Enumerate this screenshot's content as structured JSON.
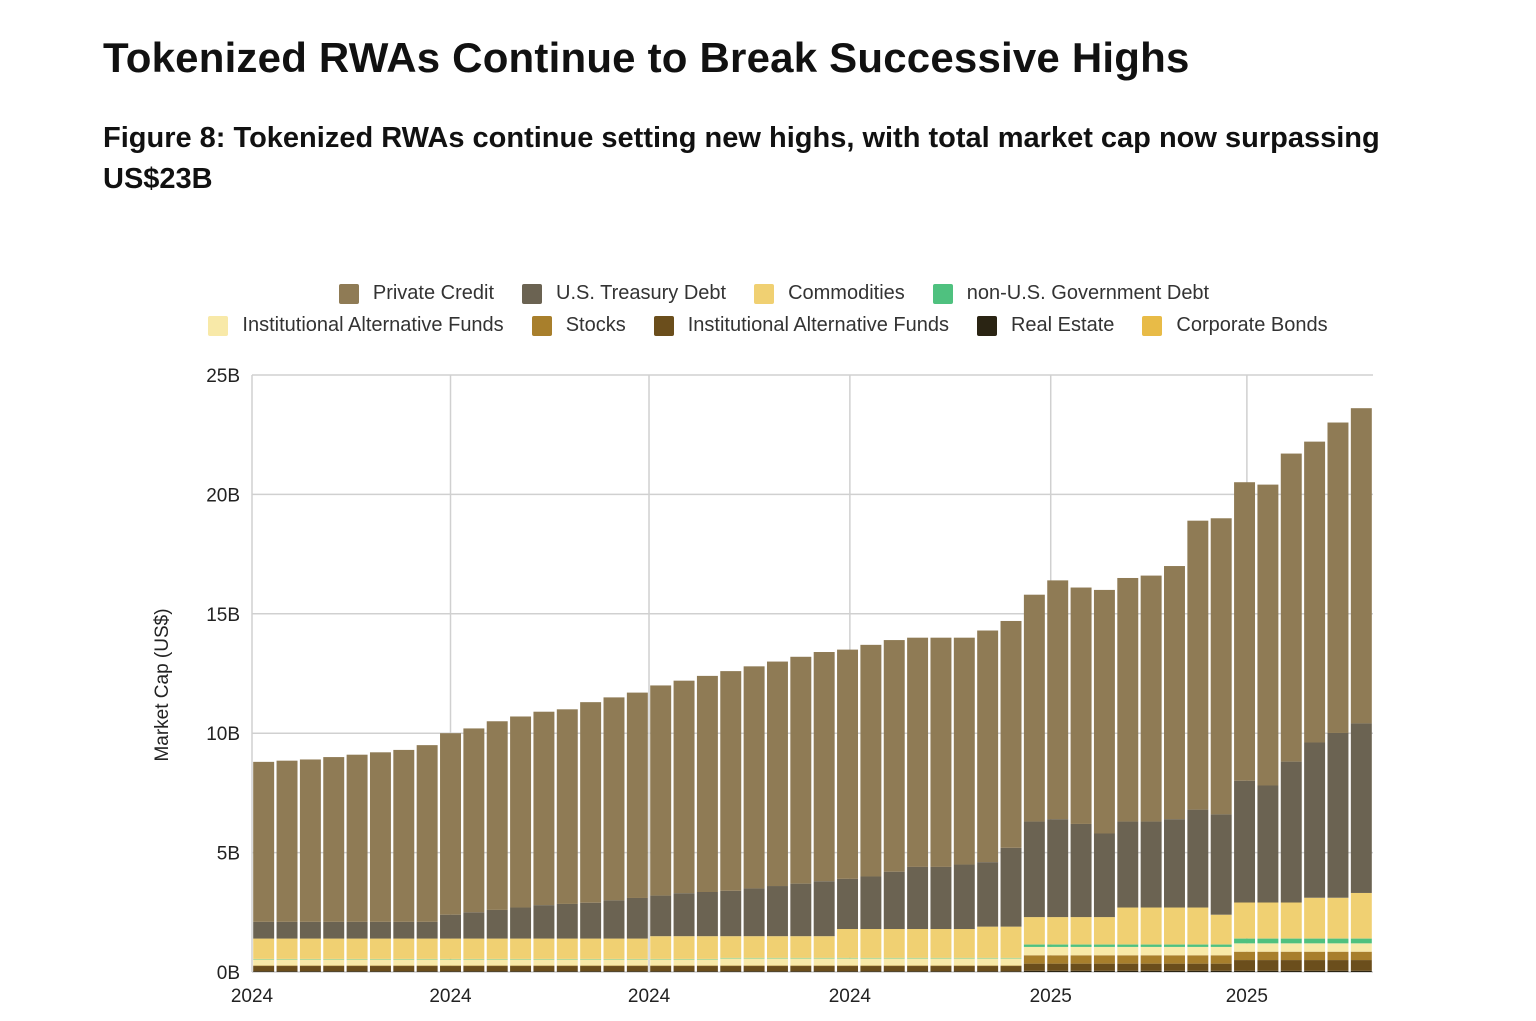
{
  "page": {
    "title": "Tokenized RWAs Continue to Break Successive Highs",
    "subtitle": "Figure 8: Tokenized RWAs continue setting new highs, with total market cap now surpassing US$23B"
  },
  "chart_data": {
    "type": "bar",
    "stacked": true,
    "ylabel": "Market Cap (US$)",
    "xlabel": "",
    "ylim": [
      0,
      25
    ],
    "y_unit": "B",
    "y_ticks": [
      "0B",
      "5B",
      "10B",
      "15B",
      "20B",
      "25B"
    ],
    "y_tick_values": [
      0,
      5,
      10,
      15,
      20,
      25
    ],
    "x_ticks": [
      {
        "label": "2024",
        "at": 0
      },
      {
        "label": "2024",
        "at": 8.5
      },
      {
        "label": "2024",
        "at": 17
      },
      {
        "label": "2024",
        "at": 25.6
      },
      {
        "label": "2025",
        "at": 34.2
      },
      {
        "label": "2025",
        "at": 42.6
      }
    ],
    "grid": true,
    "legend_placement": "top",
    "stack_order": [
      7,
      6,
      5,
      4,
      3,
      8,
      2,
      1,
      0
    ],
    "series": [
      {
        "name": "Private Credit",
        "color": "#8f7b55",
        "values": [
          6.7,
          6.75,
          6.8,
          6.9,
          7.0,
          7.1,
          7.2,
          7.4,
          7.6,
          7.7,
          7.9,
          8.0,
          8.1,
          8.15,
          8.4,
          8.5,
          8.6,
          8.8,
          8.9,
          9.05,
          9.2,
          9.3,
          9.4,
          9.5,
          9.6,
          9.6,
          9.7,
          9.7,
          9.6,
          9.6,
          9.5,
          9.7,
          9.5,
          9.5,
          10.0,
          9.9,
          10.2,
          10.2,
          10.3,
          10.6,
          12.1,
          12.4,
          12.5,
          12.6,
          12.9,
          12.6,
          13.0,
          13.2
        ]
      },
      {
        "name": "U.S. Treasury Debt",
        "color": "#6b6352",
        "values": [
          0.7,
          0.7,
          0.7,
          0.7,
          0.7,
          0.7,
          0.7,
          0.7,
          1.0,
          1.1,
          1.2,
          1.3,
          1.4,
          1.45,
          1.5,
          1.6,
          1.7,
          1.7,
          1.8,
          1.85,
          1.9,
          2.0,
          2.1,
          2.2,
          2.3,
          2.1,
          2.2,
          2.4,
          2.6,
          2.6,
          2.7,
          2.7,
          3.3,
          4.0,
          4.1,
          3.9,
          3.5,
          3.6,
          3.6,
          3.7,
          4.1,
          4.2,
          5.1,
          4.9,
          5.9,
          6.5,
          6.9,
          7.1
        ]
      },
      {
        "name": "Commodities",
        "color": "#f0d072",
        "values": [
          0.85,
          0.85,
          0.85,
          0.85,
          0.85,
          0.85,
          0.85,
          0.85,
          0.85,
          0.85,
          0.85,
          0.85,
          0.85,
          0.85,
          0.85,
          0.85,
          0.85,
          0.95,
          0.95,
          0.95,
          0.9,
          0.9,
          0.9,
          0.9,
          0.9,
          1.2,
          1.2,
          1.2,
          1.2,
          1.2,
          1.2,
          1.3,
          1.3,
          1.14,
          1.14,
          1.14,
          1.14,
          1.54,
          1.54,
          1.54,
          1.54,
          1.24,
          1.5,
          1.5,
          1.5,
          1.7,
          1.7,
          1.9
        ]
      },
      {
        "name": "non-U.S. Government Debt",
        "color": "#4fc17f",
        "values": [
          0.02,
          0.02,
          0.02,
          0.02,
          0.02,
          0.02,
          0.02,
          0.02,
          0.02,
          0.02,
          0.02,
          0.02,
          0.02,
          0.02,
          0.02,
          0.02,
          0.02,
          0.02,
          0.02,
          0.02,
          0.02,
          0.02,
          0.02,
          0.02,
          0.02,
          0.02,
          0.02,
          0.02,
          0.02,
          0.02,
          0.02,
          0.02,
          0.02,
          0.1,
          0.1,
          0.1,
          0.1,
          0.1,
          0.1,
          0.1,
          0.1,
          0.1,
          0.2,
          0.2,
          0.2,
          0.2,
          0.2,
          0.2
        ]
      },
      {
        "name": "Institutional Alternative Funds",
        "color": "#f8e9a8",
        "values": [
          0.25,
          0.25,
          0.25,
          0.25,
          0.25,
          0.25,
          0.25,
          0.25,
          0.25,
          0.25,
          0.25,
          0.25,
          0.25,
          0.25,
          0.25,
          0.25,
          0.25,
          0.25,
          0.25,
          0.25,
          0.3,
          0.3,
          0.3,
          0.3,
          0.3,
          0.3,
          0.3,
          0.3,
          0.3,
          0.3,
          0.3,
          0.3,
          0.3,
          0.35,
          0.35,
          0.35,
          0.35,
          0.35,
          0.35,
          0.35,
          0.35,
          0.35,
          0.35,
          0.35,
          0.35,
          0.35,
          0.35,
          0.35
        ]
      },
      {
        "name": "Stocks",
        "color": "#a87f2c",
        "values": [
          0.02,
          0.02,
          0.02,
          0.02,
          0.02,
          0.02,
          0.02,
          0.02,
          0.02,
          0.02,
          0.02,
          0.02,
          0.02,
          0.02,
          0.02,
          0.02,
          0.02,
          0.02,
          0.02,
          0.02,
          0.02,
          0.02,
          0.02,
          0.02,
          0.02,
          0.02,
          0.02,
          0.02,
          0.02,
          0.02,
          0.02,
          0.02,
          0.02,
          0.35,
          0.35,
          0.35,
          0.35,
          0.35,
          0.35,
          0.35,
          0.35,
          0.35,
          0.35,
          0.35,
          0.35,
          0.35,
          0.35,
          0.35
        ]
      },
      {
        "name": "Institutional Alternative Funds",
        "color": "#6b4e1c",
        "values": [
          0.22,
          0.22,
          0.22,
          0.22,
          0.22,
          0.22,
          0.22,
          0.22,
          0.22,
          0.22,
          0.22,
          0.22,
          0.22,
          0.22,
          0.22,
          0.22,
          0.22,
          0.22,
          0.22,
          0.22,
          0.22,
          0.22,
          0.22,
          0.22,
          0.22,
          0.22,
          0.22,
          0.22,
          0.22,
          0.22,
          0.22,
          0.22,
          0.22,
          0.3,
          0.3,
          0.3,
          0.3,
          0.3,
          0.3,
          0.3,
          0.3,
          0.3,
          0.45,
          0.45,
          0.45,
          0.45,
          0.45,
          0.45
        ]
      },
      {
        "name": "Real Estate",
        "color": "#2a2413",
        "values": [
          0.03,
          0.03,
          0.03,
          0.03,
          0.03,
          0.03,
          0.03,
          0.03,
          0.03,
          0.03,
          0.03,
          0.03,
          0.03,
          0.03,
          0.03,
          0.03,
          0.03,
          0.03,
          0.03,
          0.03,
          0.03,
          0.03,
          0.03,
          0.03,
          0.03,
          0.03,
          0.03,
          0.03,
          0.03,
          0.03,
          0.03,
          0.03,
          0.03,
          0.05,
          0.05,
          0.05,
          0.05,
          0.05,
          0.05,
          0.05,
          0.05,
          0.05,
          0.05,
          0.05,
          0.05,
          0.05,
          0.05,
          0.05
        ]
      },
      {
        "name": "Corporate Bonds",
        "color": "#e8bb47",
        "values": [
          0.01,
          0.01,
          0.01,
          0.01,
          0.01,
          0.01,
          0.01,
          0.01,
          0.01,
          0.01,
          0.01,
          0.01,
          0.01,
          0.01,
          0.01,
          0.01,
          0.01,
          0.01,
          0.01,
          0.01,
          0.01,
          0.01,
          0.01,
          0.01,
          0.01,
          0.01,
          0.01,
          0.01,
          0.01,
          0.01,
          0.01,
          0.01,
          0.01,
          0.01,
          0.01,
          0.01,
          0.01,
          0.01,
          0.01,
          0.01,
          0.01,
          0.01,
          0.01,
          0.01,
          0.01,
          0.01,
          0.01,
          0.01
        ]
      }
    ]
  }
}
